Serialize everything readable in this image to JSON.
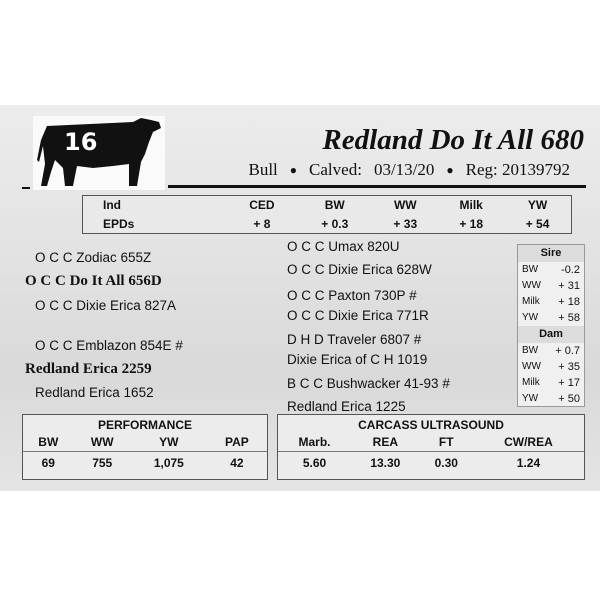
{
  "lot": {
    "number": "16",
    "name": "Redland Do It All 680",
    "sex": "Bull",
    "calved_label": "Calved:",
    "calved": "03/13/20",
    "reg_label": "Reg:",
    "reg": "20139792"
  },
  "epds": {
    "headers": [
      "Ind",
      "CED",
      "BW",
      "WW",
      "Milk",
      "YW"
    ],
    "values": [
      "EPDs",
      "+ 8",
      "+ 0.3",
      "+ 33",
      "+ 18",
      "+ 54"
    ]
  },
  "pedigree": {
    "left": [
      {
        "text": "O C C Zodiac 655Z",
        "bold": false
      },
      {
        "text": "O C C Do It All 656D",
        "bold": true
      },
      {
        "text": "O C C Dixie Erica 827A",
        "bold": false
      },
      {
        "text": "O C C Emblazon 854E #",
        "bold": false
      },
      {
        "text": "Redland Erica 2259",
        "bold": true
      },
      {
        "text": "Redland Erica 1652",
        "bold": false
      }
    ],
    "right": [
      "O C C Umax 820U",
      "O C C Dixie Erica 628W",
      "O C C Paxton 730P #",
      "O C C Dixie Erica 771R",
      "D H D Traveler 6807 #",
      "Dixie Erica of C H 1019",
      "B C C Bushwacker 41-93 #",
      "Redland Erica 1225"
    ]
  },
  "sire": {
    "label": "Sire",
    "rows": [
      [
        "BW",
        "-0.2"
      ],
      [
        "WW",
        "+ 31"
      ],
      [
        "Milk",
        "+ 18"
      ],
      [
        "YW",
        "+ 58"
      ]
    ]
  },
  "dam": {
    "label": "Dam",
    "rows": [
      [
        "BW",
        "+ 0.7"
      ],
      [
        "WW",
        "+ 35"
      ],
      [
        "Milk",
        "+ 17"
      ],
      [
        "YW",
        "+ 50"
      ]
    ]
  },
  "performance": {
    "title": "PERFORMANCE",
    "headers": [
      "BW",
      "WW",
      "YW",
      "PAP"
    ],
    "values": [
      "69",
      "755",
      "1,075",
      "42"
    ]
  },
  "carcass": {
    "title": "CARCASS ULTRASOUND",
    "headers": [
      "Marb.",
      "REA",
      "FT",
      "CW/REA"
    ],
    "values": [
      "5.60",
      "13.30",
      "0.30",
      "1.24"
    ]
  }
}
